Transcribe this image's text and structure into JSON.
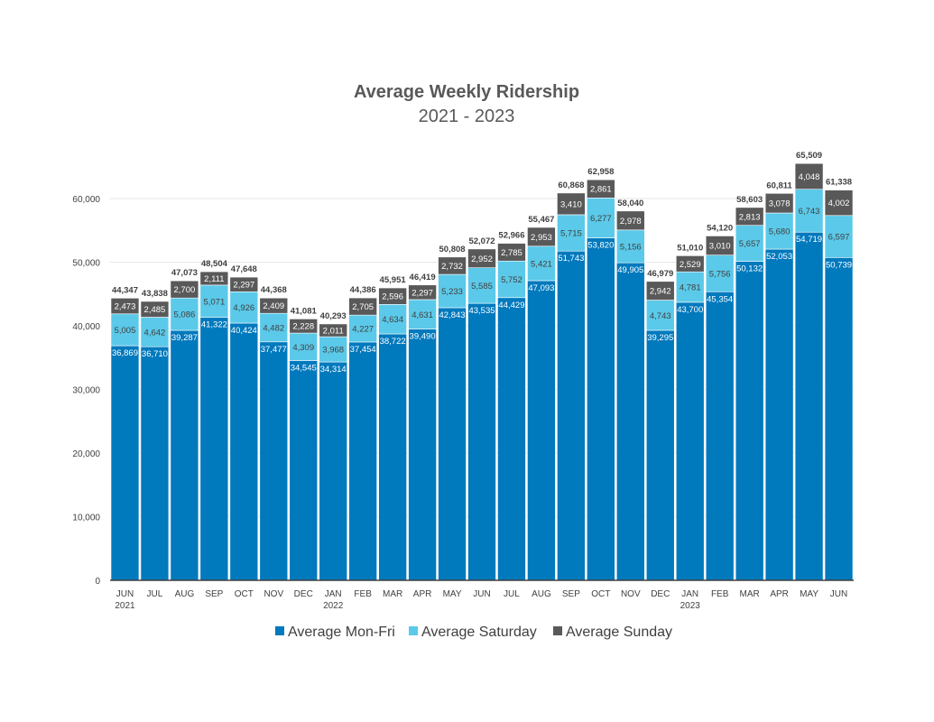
{
  "chart_data": {
    "type": "bar",
    "stacked": true,
    "title": "Average Weekly Ridership",
    "subtitle": "2021 - 2023",
    "xlabel": "",
    "ylabel": "",
    "ylim": [
      0,
      66000
    ],
    "yticks": [
      0,
      10000,
      20000,
      30000,
      40000,
      50000,
      60000
    ],
    "ytick_labels": [
      "0",
      "10,000",
      "20,000",
      "30,000",
      "40,000",
      "50,000",
      "60,000"
    ],
    "grid": true,
    "legend": "bottom",
    "categories": [
      "JUN 2021",
      "JUL",
      "AUG",
      "SEP",
      "OCT",
      "NOV",
      "DEC",
      "JAN 2022",
      "FEB",
      "MAR",
      "APR",
      "MAY",
      "JUN",
      "JUL",
      "AUG",
      "SEP",
      "OCT",
      "NOV",
      "DEC",
      "JAN 2023",
      "FEB",
      "MAR",
      "APR",
      "MAY",
      "JUN"
    ],
    "series": [
      {
        "name": "Average Mon-Fri",
        "color": "#0079BD",
        "label_color": "#ffffff",
        "values": [
          36869,
          36710,
          39287,
          41322,
          40424,
          37477,
          34545,
          34314,
          37454,
          38722,
          39490,
          42843,
          43535,
          44429,
          47093,
          51743,
          53820,
          49905,
          39295,
          43700,
          45354,
          50132,
          52053,
          54719,
          50739
        ]
      },
      {
        "name": "Average Saturday",
        "color": "#5BC9E9",
        "label_color": "#404040",
        "values": [
          5005,
          4642,
          5086,
          5071,
          4926,
          4482,
          4309,
          3968,
          4227,
          4634,
          4631,
          5233,
          5585,
          5752,
          5421,
          5715,
          6277,
          5156,
          4743,
          4781,
          5756,
          5657,
          5680,
          6743,
          6597
        ]
      },
      {
        "name": "Average Sunday",
        "color": "#595959",
        "label_color": "#ffffff",
        "values": [
          2473,
          2485,
          2700,
          2111,
          2297,
          2409,
          2228,
          2011,
          2705,
          2596,
          2297,
          2732,
          2952,
          2785,
          2953,
          3410,
          2861,
          2978,
          2942,
          2529,
          3010,
          2813,
          3078,
          4048,
          4002
        ]
      }
    ],
    "totals": [
      44347,
      43838,
      47073,
      48504,
      47648,
      44368,
      41081,
      40293,
      44386,
      45951,
      46419,
      50808,
      52072,
      52966,
      55467,
      60868,
      62958,
      58040,
      46979,
      51010,
      54120,
      58603,
      60811,
      65509,
      61338
    ]
  }
}
